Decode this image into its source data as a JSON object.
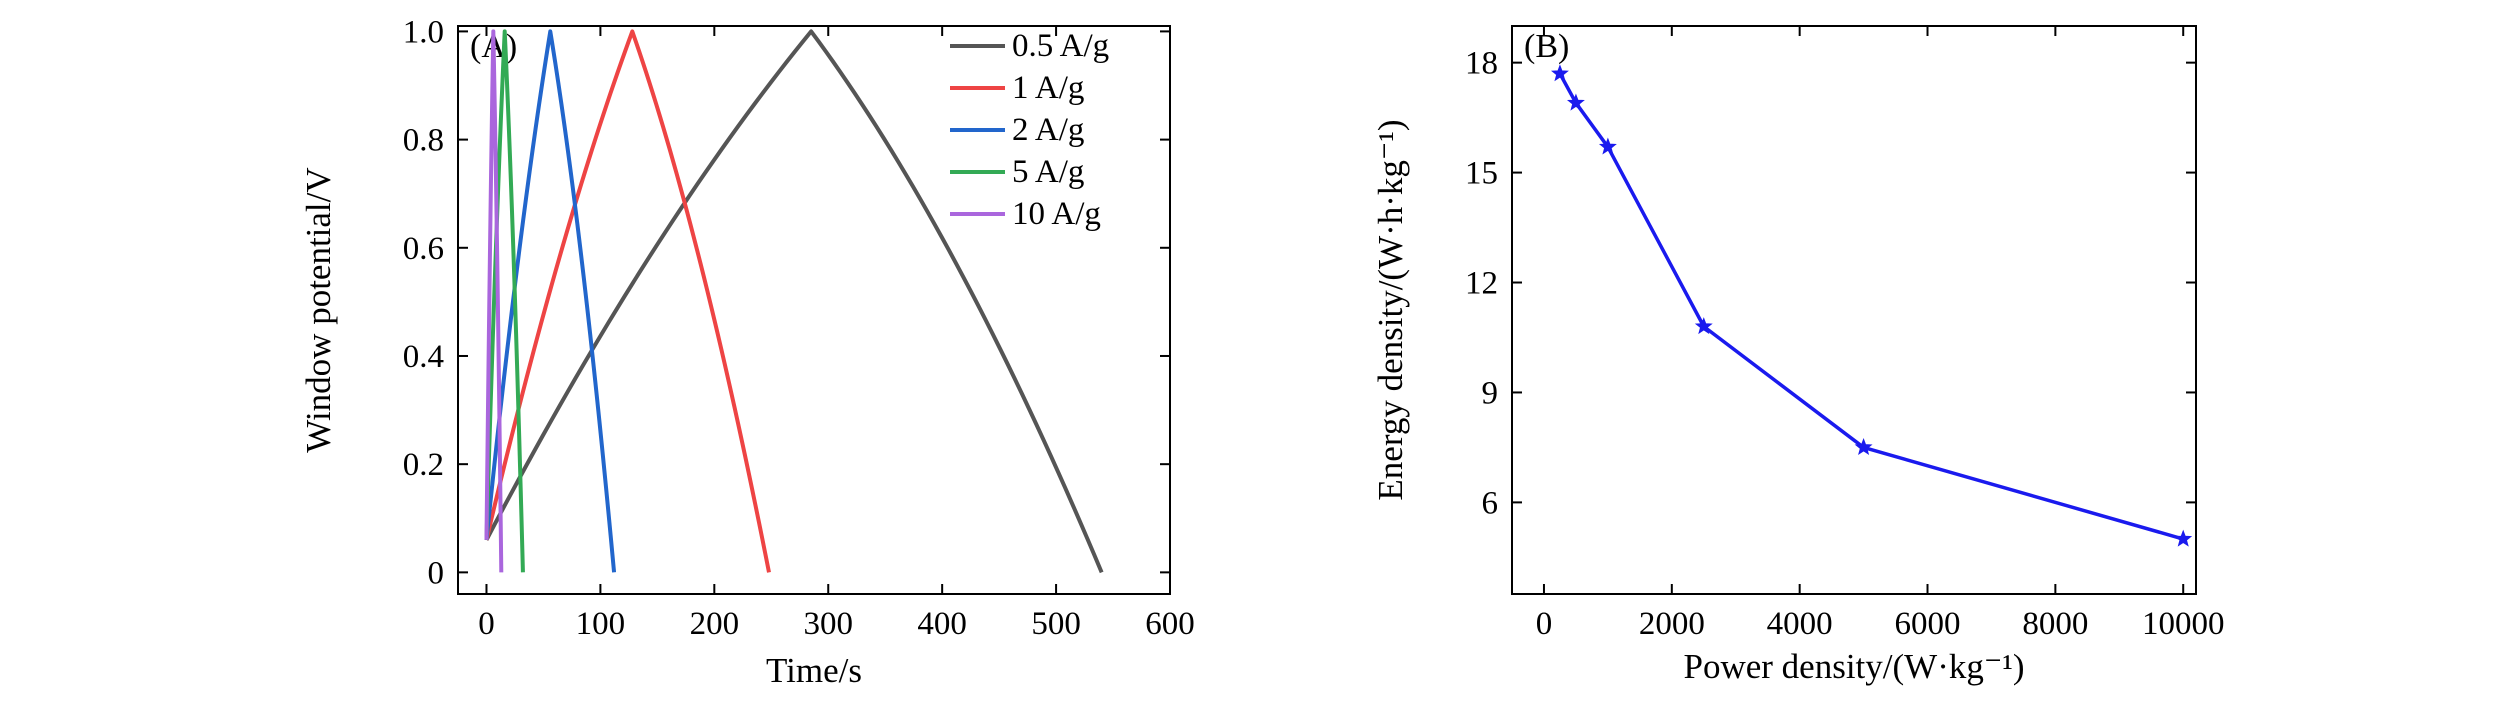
{
  "chart_data": [
    {
      "type": "line",
      "panel_label": "(A)",
      "xlabel": "Time/s",
      "ylabel": "Window potential/V",
      "xlim": [
        -25,
        600
      ],
      "ylim": [
        -0.04,
        1.01
      ],
      "xticks": [
        0,
        100,
        200,
        300,
        400,
        500,
        600
      ],
      "yticks": [
        0,
        0.2,
        0.4,
        0.6,
        0.8,
        1.0
      ],
      "xtick_labels": [
        "0",
        "100",
        "200",
        "300",
        "400",
        "500",
        "600"
      ],
      "ytick_labels": [
        "0",
        "0.2",
        "0.4",
        "0.6",
        "0.8",
        "1.0"
      ],
      "legend_position": "top-right",
      "series": [
        {
          "name": "0.5 A/g",
          "color": "#555555",
          "charge_end": 285,
          "discharge_end": 540
        },
        {
          "name": "1 A/g",
          "color": "#ee4444",
          "charge_end": 128,
          "discharge_end": 248
        },
        {
          "name": "2 A/g",
          "color": "#2266cc",
          "charge_end": 56,
          "discharge_end": 112
        },
        {
          "name": "5 A/g",
          "color": "#33aa55",
          "charge_end": 16,
          "discharge_end": 32
        },
        {
          "name": "10 A/g",
          "color": "#aa66dd",
          "charge_end": 6,
          "discharge_end": 13
        }
      ]
    },
    {
      "type": "line",
      "panel_label": "(B)",
      "xlabel": "Power density/(W·kg⁻¹)",
      "ylabel": "Energy density/(W·h·kg⁻¹)",
      "xlim": [
        -500,
        10200
      ],
      "ylim": [
        3.5,
        19
      ],
      "xticks": [
        0,
        2000,
        4000,
        6000,
        8000,
        10000
      ],
      "yticks": [
        6,
        9,
        12,
        15,
        18
      ],
      "xtick_labels": [
        "0",
        "2000",
        "4000",
        "6000",
        "8000",
        "10000"
      ],
      "ytick_labels": [
        "6",
        "9",
        "12",
        "15",
        "18"
      ],
      "color": "#1a1aee",
      "marker": "star",
      "x": [
        250,
        500,
        1000,
        2500,
        5000,
        10000
      ],
      "y": [
        17.7,
        16.9,
        15.7,
        10.8,
        7.5,
        5.0
      ]
    }
  ]
}
